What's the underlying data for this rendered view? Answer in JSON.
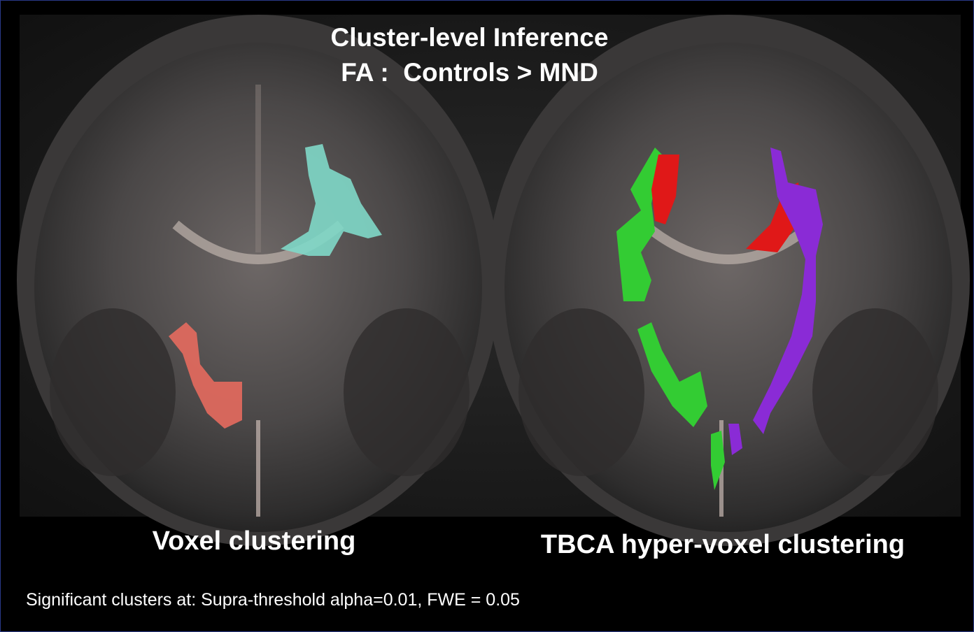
{
  "title": {
    "line1": "Cluster-level Inference",
    "line2": "FA :  Controls > MND"
  },
  "panels": [
    {
      "label": "Voxel clustering"
    },
    {
      "label": "TBCA hyper-voxel clustering"
    }
  ],
  "footnote": "Significant clusters at: Supra-threshold alpha=0.01, FWE = 0.05"
}
